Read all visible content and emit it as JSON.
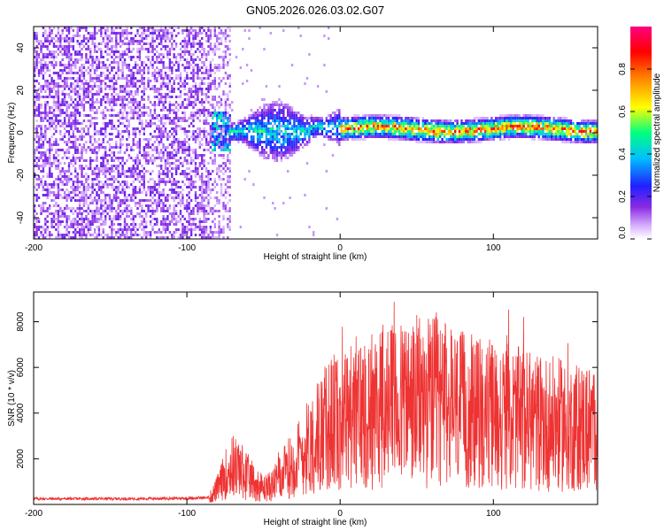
{
  "title": "GN05.2026.026.03.02.G07",
  "chart_data": [
    {
      "type": "heatmap",
      "name": "spectrogram",
      "xlabel": "Height of straight line (km)",
      "ylabel": "Frequency (Hz)",
      "xlim": [
        -200,
        168
      ],
      "ylim": [
        -50,
        50
      ],
      "xticks": [
        -200,
        -100,
        0,
        100
      ],
      "yticks": [
        -40,
        -20,
        0,
        20,
        40
      ],
      "colorbar": {
        "label": "Normalized spectral amplitude",
        "range": [
          0,
          1
        ],
        "ticks": [
          0.0,
          0.2,
          0.4,
          0.6,
          0.8
        ],
        "tick_labels": [
          "0.0",
          "0.2",
          "0.4",
          "0.6",
          "0.8"
        ],
        "colormap": [
          "#ffffff",
          "#d9b3ff",
          "#8a2be2",
          "#2020ff",
          "#00c0ff",
          "#00ff80",
          "#ffff00",
          "#ff8000",
          "#ff0000",
          "#ff0080"
        ]
      },
      "regions": [
        {
          "x_range": [
            -200,
            -85
          ],
          "description": "broadband noise",
          "amplitude": 0.15
        },
        {
          "x_range": [
            -85,
            0
          ],
          "center_freq": 0,
          "spread_hz": 10,
          "amplitude": 0.35
        },
        {
          "x_range": [
            0,
            168
          ],
          "center_freq": 1,
          "spread_hz": 4,
          "amplitude": 0.9
        }
      ]
    },
    {
      "type": "line",
      "name": "snr",
      "xlabel": "Height of straight line (km)",
      "ylabel": "SNR (10 * v/v)",
      "xlim": [
        -200,
        168
      ],
      "ylim": [
        0,
        9300
      ],
      "xticks": [
        -200,
        -100,
        0,
        100
      ],
      "yticks": [
        2000,
        4000,
        6000,
        8000
      ],
      "color": "#ee3333",
      "series": [
        {
          "name": "SNR",
          "x": [
            -200,
            -180,
            -160,
            -140,
            -120,
            -100,
            -85,
            -80,
            -75,
            -70,
            -65,
            -60,
            -55,
            -50,
            -45,
            -40,
            -35,
            -30,
            -25,
            -20,
            -15,
            -10,
            -5,
            0,
            10,
            20,
            30,
            40,
            50,
            60,
            70,
            80,
            90,
            100,
            110,
            120,
            130,
            140,
            150,
            160,
            168
          ],
          "y": [
            250,
            250,
            250,
            250,
            260,
            270,
            300,
            700,
            1300,
            1700,
            1500,
            1200,
            900,
            700,
            800,
            1100,
            1500,
            1800,
            2200,
            2600,
            3000,
            3300,
            3600,
            3700,
            4000,
            4200,
            4300,
            4400,
            4500,
            4500,
            4300,
            4100,
            4000,
            3900,
            3800,
            3700,
            3600,
            3500,
            3400,
            3400,
            3300
          ]
        }
      ]
    }
  ]
}
